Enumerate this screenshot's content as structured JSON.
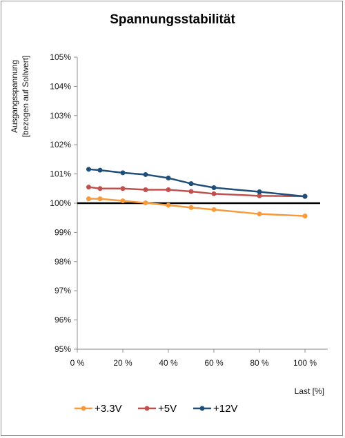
{
  "chart_data": {
    "type": "line",
    "title": "Spannungsstabilität",
    "xlabel": "Last [%]",
    "ylabel_lines": [
      "Ausgangsspannung",
      "[bezogen auf Sollwert]"
    ],
    "xlim": [
      0,
      110
    ],
    "ylim": [
      95,
      105
    ],
    "x_ticks": [
      0,
      20,
      40,
      60,
      80,
      100
    ],
    "x_tick_labels": [
      "0 %",
      "20 %",
      "40 %",
      "60 %",
      "80 %",
      "100 %"
    ],
    "y_ticks": [
      95,
      96,
      97,
      98,
      99,
      100,
      101,
      102,
      103,
      104,
      105
    ],
    "y_tick_labels": [
      "95%",
      "96%",
      "97%",
      "98%",
      "99%",
      "100%",
      "101%",
      "102%",
      "103%",
      "104%",
      "105%"
    ],
    "grid": false,
    "legend_position": "bottom",
    "reference_line": {
      "y": 100,
      "color": "#000000"
    },
    "x": [
      5,
      10,
      20,
      30,
      40,
      50,
      60,
      80,
      100
    ],
    "series": [
      {
        "name": "+3.3V",
        "color": "#f79a3c",
        "values": [
          100.15,
          100.15,
          100.08,
          100.01,
          99.93,
          99.85,
          99.78,
          99.63,
          99.56
        ]
      },
      {
        "name": "+5V",
        "color": "#c0504d",
        "values": [
          100.55,
          100.5,
          100.5,
          100.46,
          100.46,
          100.4,
          100.32,
          100.25,
          100.24
        ]
      },
      {
        "name": "+12V",
        "color": "#1f4e79",
        "values": [
          101.16,
          101.13,
          101.04,
          100.98,
          100.86,
          100.67,
          100.53,
          100.39,
          100.23
        ]
      }
    ]
  }
}
